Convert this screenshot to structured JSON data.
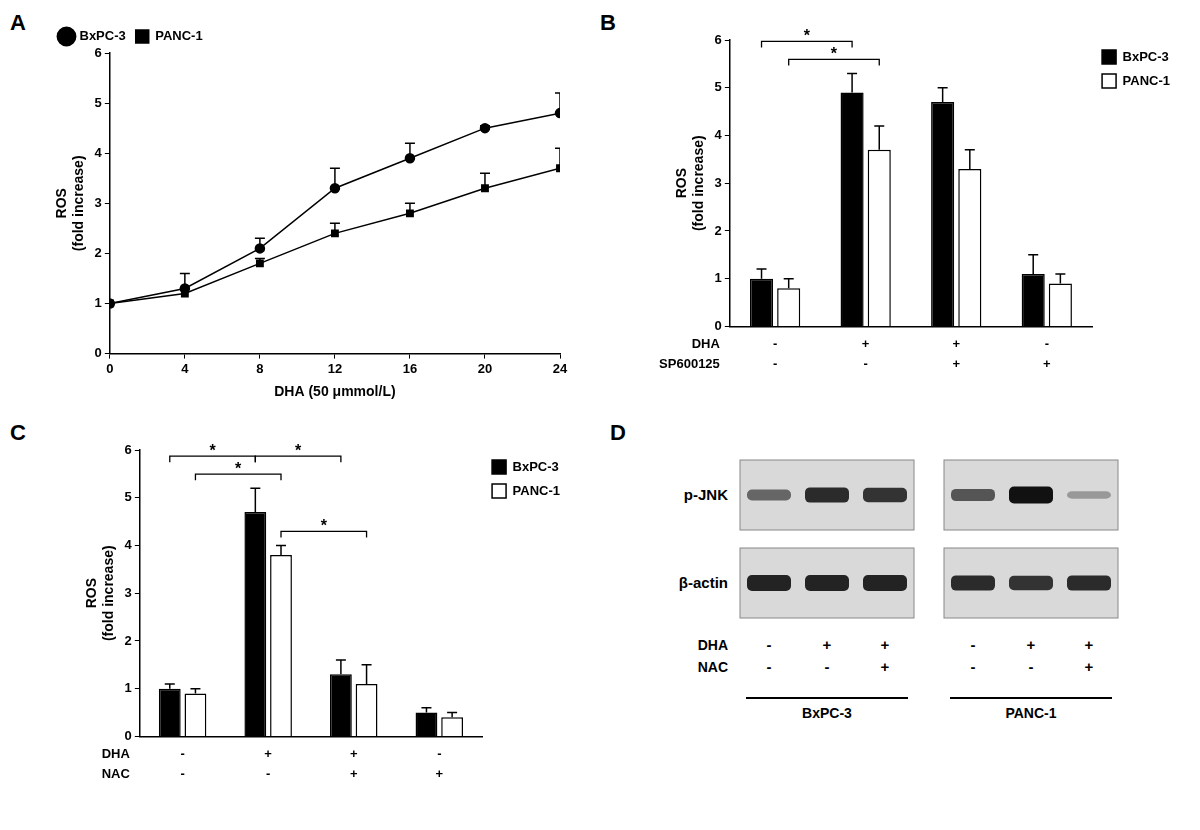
{
  "chart_data": [
    {
      "panel": "A",
      "type": "line",
      "x": [
        0,
        4,
        8,
        12,
        16,
        20,
        24
      ],
      "xlim": [
        0,
        24
      ],
      "xticks": [
        0,
        4,
        8,
        12,
        16,
        20,
        24
      ],
      "xlabel": "DHA (50 μmmol/L)",
      "ylabel": [
        "ROS",
        "(fold increase)"
      ],
      "ylim": [
        0,
        6
      ],
      "yticks": [
        0,
        1,
        2,
        3,
        4,
        5,
        6
      ],
      "grid": false,
      "legend": "upper left",
      "series": [
        {
          "name": "BxPC-3",
          "color": "#000000",
          "marker": "circle",
          "values": [
            1.0,
            1.3,
            2.1,
            3.3,
            3.9,
            4.5,
            4.8
          ],
          "errors": [
            0.0,
            0.3,
            0.2,
            0.4,
            0.3,
            0.05,
            0.4
          ]
        },
        {
          "name": "PANC-1",
          "color": "#000000",
          "marker": "square",
          "values": [
            1.0,
            1.2,
            1.8,
            2.4,
            2.8,
            3.3,
            3.7
          ],
          "errors": [
            0.0,
            0.1,
            0.1,
            0.2,
            0.2,
            0.3,
            0.4
          ]
        }
      ]
    },
    {
      "panel": "B",
      "type": "bar",
      "categories": [
        null,
        null,
        null,
        null
      ],
      "conditions": [
        {
          "name": "DHA",
          "signs": [
            "-",
            "+",
            "+",
            "-"
          ]
        },
        {
          "name": "SP600125",
          "signs": [
            "-",
            "-",
            "+",
            "+"
          ]
        }
      ],
      "ylabel": [
        "ROS",
        "(fold increase)"
      ],
      "ylim": [
        0,
        6
      ],
      "yticks": [
        0,
        1,
        2,
        3,
        4,
        5,
        6
      ],
      "grid": false,
      "legend": "upper right",
      "series": [
        {
          "name": "BxPC-3",
          "color": "#000000",
          "values": [
            1.0,
            4.9,
            4.7,
            1.1
          ],
          "errors": [
            0.2,
            0.4,
            0.3,
            0.4
          ]
        },
        {
          "name": "PANC-1",
          "color": "#ffffff",
          "values": [
            0.8,
            3.7,
            3.3,
            0.9
          ],
          "errors": [
            0.2,
            0.5,
            0.4,
            0.2
          ]
        }
      ],
      "significance": [
        {
          "from": [
            0,
            1
          ],
          "to": [
            1,
            1
          ],
          "label": "*"
        },
        {
          "from": [
            0,
            0
          ],
          "to": [
            1,
            0
          ],
          "label": "*"
        }
      ]
    },
    {
      "panel": "C",
      "type": "bar",
      "categories": [
        null,
        null,
        null,
        null
      ],
      "conditions": [
        {
          "name": "DHA",
          "signs": [
            "-",
            "+",
            "+",
            "-"
          ]
        },
        {
          "name": "NAC",
          "signs": [
            "-",
            "-",
            "+",
            "+"
          ]
        }
      ],
      "ylabel": [
        "ROS",
        "(fold increase)"
      ],
      "ylim": [
        0,
        6
      ],
      "yticks": [
        0,
        1,
        2,
        3,
        4,
        5,
        6
      ],
      "grid": false,
      "legend": "upper right",
      "series": [
        {
          "name": "BxPC-3",
          "color": "#000000",
          "values": [
            1.0,
            4.7,
            1.3,
            0.5
          ],
          "errors": [
            0.1,
            0.5,
            0.3,
            0.1
          ]
        },
        {
          "name": "PANC-1",
          "color": "#ffffff",
          "values": [
            0.9,
            3.8,
            1.1,
            0.4
          ],
          "errors": [
            0.1,
            0.2,
            0.4,
            0.1
          ]
        }
      ],
      "significance": [
        {
          "from": [
            0,
            1
          ],
          "to": [
            1,
            1
          ],
          "label": "*"
        },
        {
          "from": [
            1,
            1
          ],
          "to": [
            2,
            1
          ],
          "label": "*"
        },
        {
          "from": [
            0,
            0
          ],
          "to": [
            1,
            0
          ],
          "label": "*"
        },
        {
          "from": [
            1,
            0
          ],
          "to": [
            2,
            0
          ],
          "label": "*"
        }
      ]
    }
  ],
  "blot": {
    "panel": "D",
    "rows": [
      {
        "name": "p-JNK",
        "intensity": [
          0.5,
          0.85,
          0.8,
          0.6,
          1.0,
          0.2
        ]
      },
      {
        "name": "β-actin",
        "intensity": [
          0.9,
          0.9,
          0.9,
          0.85,
          0.8,
          0.85
        ]
      }
    ],
    "conditions": [
      {
        "name": "DHA",
        "signs": [
          "-",
          "+",
          "+",
          "-",
          "+",
          "+"
        ]
      },
      {
        "name": "NAC",
        "signs": [
          "-",
          "-",
          "+",
          "-",
          "-",
          "+"
        ]
      }
    ],
    "groups": [
      {
        "name": "BxPC-3",
        "lanes": 3
      },
      {
        "name": "PANC-1",
        "lanes": 3
      }
    ]
  }
}
